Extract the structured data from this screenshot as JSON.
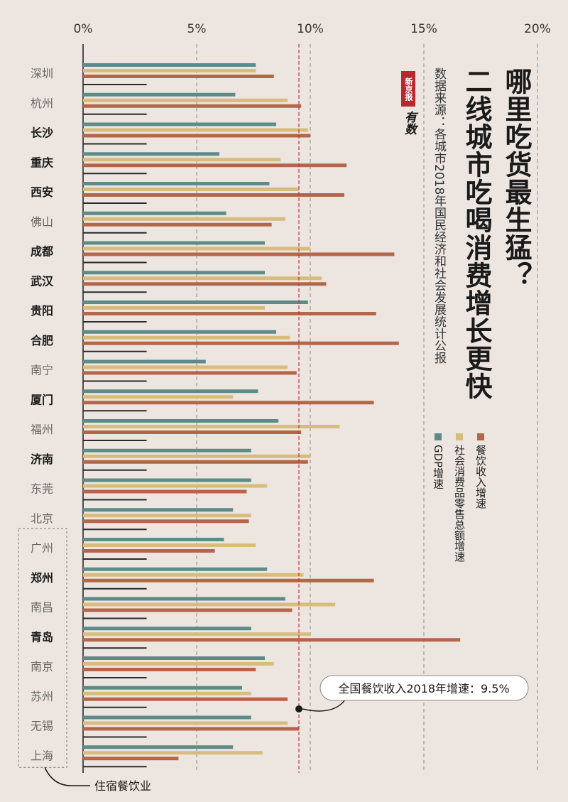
{
  "header": {
    "title": "哪里吃货最生猛？",
    "subtitle": "二线城市吃喝消费增长更快",
    "source": "数据来源：各城市2018年国民经济和社会发展统计公报"
  },
  "logo": {
    "name": "新京报",
    "sub": "有数"
  },
  "colors": {
    "gdp": "#5e8b88",
    "retail": "#d7bc7b",
    "catering": "#b5664a",
    "lodging": "#2a2a2a",
    "reference": "#b83a3a",
    "background": "#ede6e0"
  },
  "legend": [
    {
      "label": "GDP增速",
      "color": "#5e8b88"
    },
    {
      "label": "社会消费品零售总额增速",
      "color": "#d7bc7b"
    },
    {
      "label": "餐饮收入增速",
      "color": "#b5664a"
    }
  ],
  "chart_data": {
    "type": "bar",
    "orientation": "horizontal",
    "xlim": [
      0,
      20
    ],
    "tick_labels": [
      "0%",
      "5%",
      "10%",
      "15%",
      "20%"
    ],
    "tick_values": [
      0,
      5,
      10,
      15,
      20
    ],
    "categories": [
      "深圳",
      "杭州",
      "长沙",
      "重庆",
      "西安",
      "佛山",
      "成都",
      "武汉",
      "贵阳",
      "合肥",
      "南宁",
      "厦门",
      "福州",
      "济南",
      "东莞",
      "北京",
      "广州",
      "郑州",
      "南昌",
      "青岛",
      "南京",
      "苏州",
      "无锡",
      "上海"
    ],
    "bold_categories": [
      "长沙",
      "重庆",
      "西安",
      "成都",
      "武汉",
      "贵阳",
      "合肥",
      "厦门",
      "济南",
      "郑州",
      "青岛"
    ],
    "series": [
      {
        "name": "GDP增速",
        "values": [
          7.6,
          6.7,
          8.5,
          6.0,
          8.2,
          6.3,
          8.0,
          8.0,
          9.9,
          8.5,
          5.4,
          7.7,
          8.6,
          7.4,
          7.4,
          6.6,
          6.2,
          8.1,
          8.9,
          7.4,
          8.0,
          7.0,
          7.4,
          6.6
        ]
      },
      {
        "name": "社会消费品零售总额增速",
        "values": [
          7.6,
          9.0,
          9.9,
          8.7,
          9.5,
          8.9,
          10.0,
          10.5,
          8.0,
          9.1,
          9.0,
          6.6,
          11.3,
          10.0,
          8.1,
          7.4,
          7.6,
          9.7,
          11.1,
          10.0,
          8.4,
          7.4,
          9.0,
          7.9
        ]
      },
      {
        "name": "餐饮收入增速",
        "values": [
          8.4,
          9.6,
          10.0,
          11.6,
          11.5,
          8.3,
          13.7,
          10.7,
          12.9,
          13.9,
          9.4,
          12.8,
          9.6,
          9.9,
          7.2,
          7.3,
          5.8,
          12.8,
          9.2,
          16.6,
          7.6,
          9.0,
          9.5,
          4.2
        ]
      },
      {
        "values": [
          2.8,
          2.8,
          2.8,
          2.8,
          2.8,
          2.8,
          2.8,
          2.8,
          2.8,
          2.8,
          2.8,
          2.8,
          2.8,
          2.8,
          2.8,
          2.8,
          2.8,
          2.8,
          2.8,
          2.8,
          2.8,
          2.8,
          2.8,
          2.8
        ]
      }
    ],
    "reference": {
      "value": 9.5,
      "label": "全国餐饮收入2018年增速：9.5%"
    },
    "lodging_note": "住宿餐饮业",
    "lodging_group": [
      "广州",
      "郑州",
      "南昌",
      "青岛",
      "南京",
      "苏州",
      "无锡",
      "上海"
    ]
  }
}
